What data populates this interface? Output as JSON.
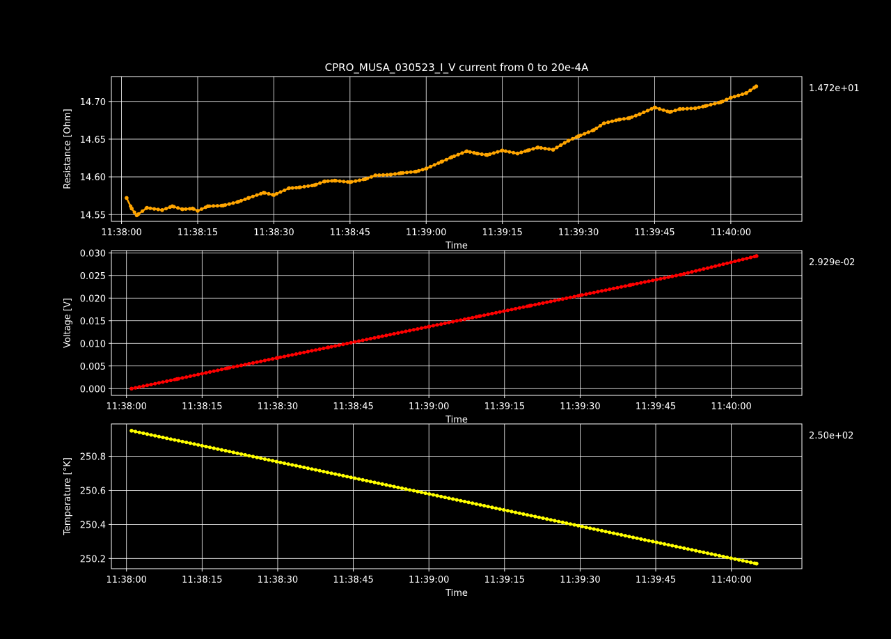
{
  "colors": {
    "background": "#000000",
    "foreground": "#ffffff",
    "grid": "#ffffff"
  },
  "chart_data": [
    {
      "type": "scatter",
      "title": "CPRO_MUSA_030523_I_V current from 0 to 20e-4A",
      "xlabel": "Time",
      "ylabel": "Resistance [Ohm]",
      "color": "#ffa500",
      "last_value_label": "1.472e+01",
      "xlim": [
        "11:37:58",
        "11:40:14"
      ],
      "ylim": [
        14.541,
        14.733
      ],
      "xticks": [
        "11:38:00",
        "11:38:15",
        "11:38:30",
        "11:38:45",
        "11:39:00",
        "11:39:15",
        "11:39:30",
        "11:39:45",
        "11:40:00"
      ],
      "yticks": [
        "14.55",
        "14.60",
        "14.65",
        "14.70"
      ],
      "grid": true,
      "x": [
        "11:38:01",
        "11:38:02",
        "11:38:03",
        "11:38:05",
        "11:38:08",
        "11:38:10",
        "11:38:12",
        "11:38:14",
        "11:38:15",
        "11:38:17",
        "11:38:20",
        "11:38:23",
        "11:38:25",
        "11:38:28",
        "11:38:30",
        "11:38:33",
        "11:38:35",
        "11:38:38",
        "11:38:40",
        "11:38:42",
        "11:38:45",
        "11:38:48",
        "11:38:50",
        "11:38:53",
        "11:38:55",
        "11:38:58",
        "11:39:00",
        "11:39:03",
        "11:39:05",
        "11:39:08",
        "11:39:10",
        "11:39:12",
        "11:39:15",
        "11:39:18",
        "11:39:20",
        "11:39:22",
        "11:39:25",
        "11:39:28",
        "11:39:30",
        "11:39:33",
        "11:39:35",
        "11:39:38",
        "11:39:40",
        "11:39:42",
        "11:39:45",
        "11:39:48",
        "11:39:50",
        "11:39:53",
        "11:39:55",
        "11:39:58",
        "11:40:00",
        "11:40:03",
        "11:40:05"
      ],
      "y": [
        14.572,
        14.558,
        14.549,
        14.559,
        14.556,
        14.561,
        14.557,
        14.558,
        14.555,
        14.561,
        14.562,
        14.567,
        14.572,
        14.579,
        14.576,
        14.585,
        14.586,
        14.589,
        14.594,
        14.595,
        14.593,
        14.597,
        14.602,
        14.603,
        14.605,
        14.607,
        14.611,
        14.62,
        14.626,
        14.634,
        14.631,
        14.629,
        14.635,
        14.631,
        14.635,
        14.639,
        14.636,
        14.648,
        14.654,
        14.662,
        14.671,
        14.676,
        14.678,
        14.683,
        14.692,
        14.686,
        14.69,
        14.691,
        14.694,
        14.699,
        14.705,
        14.711,
        14.72
      ]
    },
    {
      "type": "scatter",
      "xlabel": "Time",
      "ylabel": "Voltage [V]",
      "color": "#ff0000",
      "last_value_label": "2.929e-02",
      "xlim": [
        "11:37:57",
        "11:40:14"
      ],
      "ylim": [
        -0.0015,
        0.0305
      ],
      "xticks": [
        "11:38:00",
        "11:38:15",
        "11:38:30",
        "11:38:45",
        "11:39:00",
        "11:39:15",
        "11:39:30",
        "11:39:45",
        "11:40:00"
      ],
      "yticks": [
        "0.000",
        "0.005",
        "0.010",
        "0.015",
        "0.020",
        "0.025",
        "0.030"
      ],
      "grid": true,
      "x": [
        "11:38:01",
        "11:38:10",
        "11:38:20",
        "11:38:30",
        "11:38:40",
        "11:38:50",
        "11:39:00",
        "11:39:10",
        "11:39:20",
        "11:39:30",
        "11:39:40",
        "11:39:50",
        "11:40:05"
      ],
      "y": [
        0.0,
        0.0021,
        0.0045,
        0.0068,
        0.0091,
        0.0114,
        0.0137,
        0.016,
        0.0183,
        0.0206,
        0.0229,
        0.0252,
        0.0293
      ]
    },
    {
      "type": "scatter",
      "xlabel": "Time",
      "ylabel": "Temperature [°K]",
      "color": "#ffff00",
      "last_value_label": "2.50e+02",
      "xlim": [
        "11:37:57",
        "11:40:14"
      ],
      "ylim": [
        250.14,
        250.99
      ],
      "xticks": [
        "11:38:00",
        "11:38:15",
        "11:38:30",
        "11:38:45",
        "11:39:00",
        "11:39:15",
        "11:39:30",
        "11:39:45",
        "11:40:00"
      ],
      "yticks": [
        "250.2",
        "250.4",
        "250.6",
        "250.8"
      ],
      "grid": true,
      "x": [
        "11:38:01",
        "11:40:05"
      ],
      "y": [
        250.95,
        250.17
      ]
    }
  ]
}
